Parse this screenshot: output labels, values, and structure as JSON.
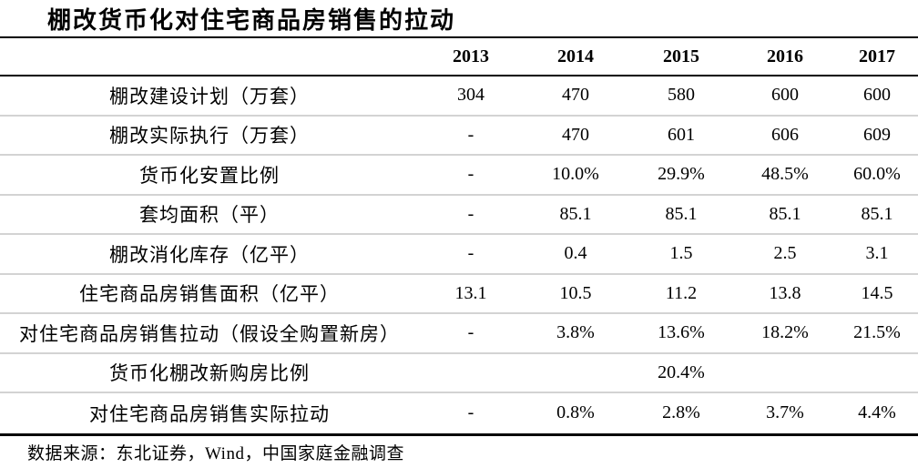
{
  "title": "棚改货币化对住宅商品房销售的拉动",
  "source": "数据来源：东北证券，Wind，中国家庭金融调查",
  "colors": {
    "text": "#000000",
    "rule_heavy": "#000000",
    "rule_light": "#d3d3d3",
    "background": "#ffffff"
  },
  "table": {
    "year_headers": [
      "2013",
      "2014",
      "2015",
      "2016",
      "2017"
    ],
    "rows": [
      {
        "label": "棚改建设计划（万套）",
        "values": [
          "304",
          "470",
          "580",
          "600",
          "600"
        ]
      },
      {
        "label": "棚改实际执行（万套）",
        "values": [
          "-",
          "470",
          "601",
          "606",
          "609"
        ]
      },
      {
        "label": "货币化安置比例",
        "values": [
          "-",
          "10.0%",
          "29.9%",
          "48.5%",
          "60.0%"
        ]
      },
      {
        "label": "套均面积（平）",
        "values": [
          "-",
          "85.1",
          "85.1",
          "85.1",
          "85.1"
        ]
      },
      {
        "label": "棚改消化库存（亿平）",
        "values": [
          "-",
          "0.4",
          "1.5",
          "2.5",
          "3.1"
        ]
      },
      {
        "label": "住宅商品房销售面积（亿平）",
        "values": [
          "13.1",
          "10.5",
          "11.2",
          "13.8",
          "14.5"
        ]
      },
      {
        "label": "对住宅商品房销售拉动（假设全购置新房）",
        "values": [
          "-",
          "3.8%",
          "13.6%",
          "18.2%",
          "21.5%"
        ]
      },
      {
        "label": "货币化棚改新购房比例",
        "values": [
          "",
          "",
          "20.4%",
          "",
          ""
        ]
      },
      {
        "label": "对住宅商品房销售实际拉动",
        "values": [
          "-",
          "0.8%",
          "2.8%",
          "3.7%",
          "4.4%"
        ]
      }
    ]
  }
}
